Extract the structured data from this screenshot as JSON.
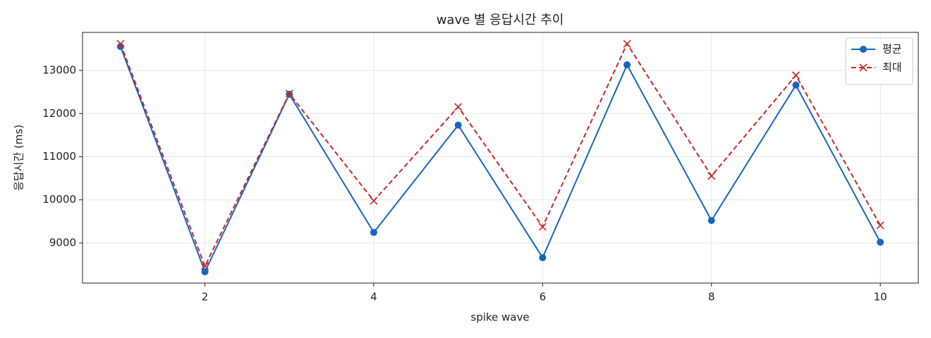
{
  "chart_data": {
    "type": "line",
    "title": "wave 별 응답시간 추이",
    "x_label": "spike wave",
    "y_label": "응답시간 (ms)",
    "x": [
      1,
      2,
      3,
      4,
      5,
      6,
      7,
      8,
      9,
      10
    ],
    "series": [
      {
        "name": "평균",
        "color": "#1565c0",
        "marker": "o",
        "linestyle": "solid",
        "values": [
          13553,
          8333,
          12447,
          9244,
          11732,
          8659,
          13130,
          9520,
          12659,
          9016
        ]
      },
      {
        "name": "최대",
        "color": "#c62828",
        "marker": "x",
        "linestyle": "dashed",
        "values": [
          13618,
          8463,
          12463,
          9976,
          12154,
          9374,
          13618,
          10553,
          12886,
          9407
        ]
      }
    ],
    "xlim": [
      0.55,
      10.45
    ],
    "xticks": [
      2,
      4,
      6,
      8,
      10
    ],
    "ylim": [
      8069,
      13882
    ],
    "yticks": [
      9000,
      10000,
      11000,
      12000,
      13000
    ],
    "grid": true,
    "legend": "upper right"
  }
}
